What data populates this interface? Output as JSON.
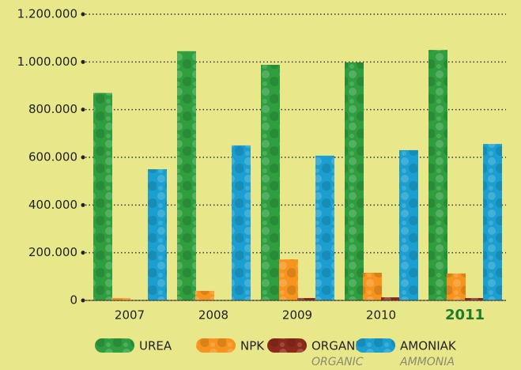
{
  "chart_data": {
    "type": "bar",
    "categories": [
      "2007",
      "2008",
      "2009",
      "2010",
      "2011"
    ],
    "highlight_category": 4,
    "highlight_color": "#1f7a2c",
    "series": [
      {
        "name": "UREA",
        "color": "#2f9e3f",
        "values": [
          870000,
          1045000,
          988000,
          998000,
          1050000
        ]
      },
      {
        "name": "NPK",
        "color": "#f7941d",
        "values": [
          10000,
          40000,
          172000,
          116000,
          113000
        ]
      },
      {
        "name": "ORGANIK",
        "name_en": "ORGANIC",
        "color": "#8b2a1a",
        "values": [
          0,
          0,
          10000,
          13000,
          10000
        ]
      },
      {
        "name": "AMONIAK",
        "name_en": "AMMONIA",
        "color": "#1a9fd0",
        "values": [
          550000,
          650000,
          607000,
          630000,
          656000
        ]
      }
    ],
    "ylim": [
      0,
      1200000
    ],
    "yticks": [
      {
        "value": 0,
        "label": "0"
      },
      {
        "value": 200000,
        "label": "200.000"
      },
      {
        "value": 400000,
        "label": "400.000"
      },
      {
        "value": 600000,
        "label": "600.000"
      },
      {
        "value": 800000,
        "label": "800.000"
      },
      {
        "value": 1000000,
        "label": "1.000.000"
      },
      {
        "value": 1200000,
        "label": "1.200.000"
      }
    ],
    "grid": true
  }
}
